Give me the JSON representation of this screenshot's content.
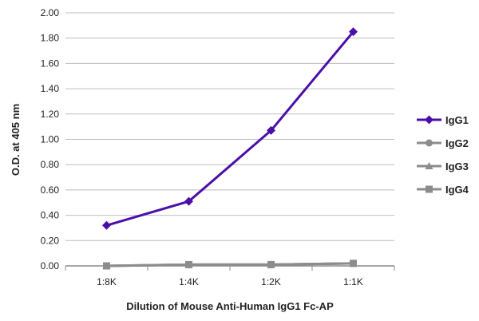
{
  "chart_data": {
    "type": "line",
    "categories": [
      "1:8K",
      "1:4K",
      "1:2K",
      "1:1K"
    ],
    "xlabel": "Dilution of Mouse Anti-Human IgG1 Fc-AP",
    "ylabel": "O.D. at 405 nm",
    "ylim": [
      0,
      2.0
    ],
    "yticks": [
      "0.00",
      "0.20",
      "0.40",
      "0.60",
      "0.80",
      "1.00",
      "1.20",
      "1.40",
      "1.60",
      "1.80",
      "2.00"
    ],
    "grid": "horizontal",
    "legend_position": "right",
    "series": [
      {
        "name": "IgG1",
        "values": [
          0.32,
          0.51,
          1.07,
          1.85
        ],
        "color": "#4b0fa8",
        "marker": "diamond"
      },
      {
        "name": "IgG2",
        "values": [
          0.0,
          0.01,
          0.01,
          0.02
        ],
        "color": "#8c8c8c",
        "marker": "circle"
      },
      {
        "name": "IgG3",
        "values": [
          0.0,
          0.01,
          0.01,
          0.02
        ],
        "color": "#8c8c8c",
        "marker": "triangle"
      },
      {
        "name": "IgG4",
        "values": [
          0.0,
          0.01,
          0.01,
          0.02
        ],
        "color": "#8c8c8c",
        "marker": "square"
      }
    ]
  }
}
